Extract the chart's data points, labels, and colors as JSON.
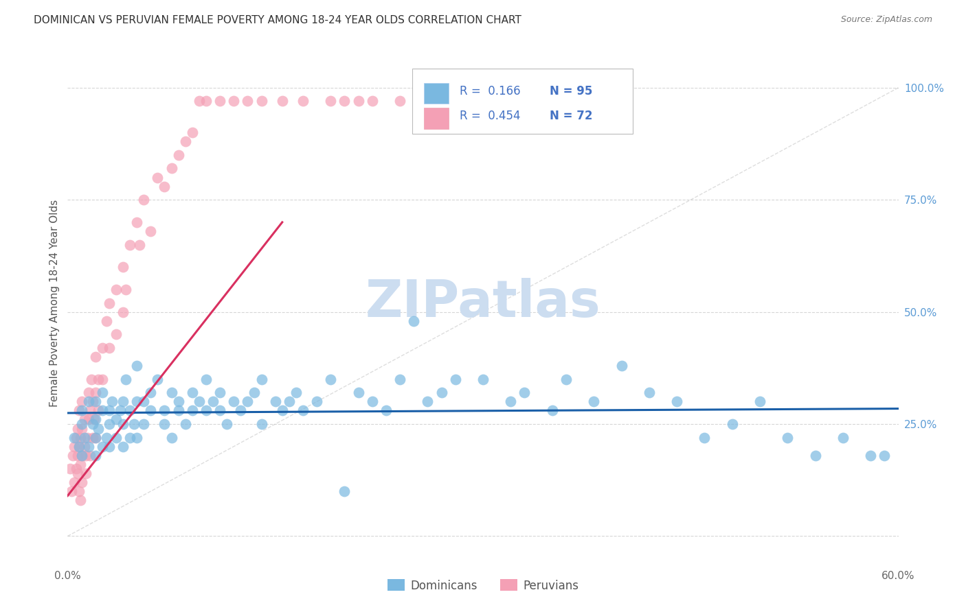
{
  "title": "DOMINICAN VS PERUVIAN FEMALE POVERTY AMONG 18-24 YEAR OLDS CORRELATION CHART",
  "source": "Source: ZipAtlas.com",
  "ylabel": "Female Poverty Among 18-24 Year Olds",
  "xlim": [
    0.0,
    0.6
  ],
  "ylim": [
    -0.06,
    1.1
  ],
  "blue_color": "#7ab8e0",
  "pink_color": "#f4a0b5",
  "blue_line_color": "#1a5fa8",
  "pink_line_color": "#d93060",
  "ref_line_color": "#c8c8c8",
  "watermark": "ZIPatlas",
  "watermark_color": "#ccddf0",
  "background_color": "#ffffff",
  "grid_color": "#cccccc",
  "title_color": "#333333",
  "right_tick_color": "#5b9bd5",
  "legend_text_color": "#4472c4",
  "dominicans_x": [
    0.005,
    0.008,
    0.01,
    0.01,
    0.01,
    0.012,
    0.015,
    0.015,
    0.018,
    0.02,
    0.02,
    0.02,
    0.02,
    0.022,
    0.025,
    0.025,
    0.025,
    0.028,
    0.03,
    0.03,
    0.03,
    0.032,
    0.035,
    0.035,
    0.038,
    0.04,
    0.04,
    0.04,
    0.042,
    0.045,
    0.045,
    0.048,
    0.05,
    0.05,
    0.05,
    0.055,
    0.055,
    0.06,
    0.06,
    0.065,
    0.07,
    0.07,
    0.075,
    0.075,
    0.08,
    0.08,
    0.085,
    0.09,
    0.09,
    0.095,
    0.1,
    0.1,
    0.105,
    0.11,
    0.11,
    0.115,
    0.12,
    0.125,
    0.13,
    0.135,
    0.14,
    0.14,
    0.15,
    0.155,
    0.16,
    0.165,
    0.17,
    0.18,
    0.19,
    0.2,
    0.21,
    0.22,
    0.23,
    0.24,
    0.25,
    0.26,
    0.27,
    0.28,
    0.3,
    0.32,
    0.33,
    0.35,
    0.36,
    0.38,
    0.4,
    0.42,
    0.44,
    0.46,
    0.48,
    0.5,
    0.52,
    0.54,
    0.56,
    0.58,
    0.59
  ],
  "dominicans_y": [
    0.22,
    0.2,
    0.18,
    0.25,
    0.28,
    0.22,
    0.2,
    0.3,
    0.25,
    0.22,
    0.26,
    0.18,
    0.3,
    0.24,
    0.2,
    0.28,
    0.32,
    0.22,
    0.25,
    0.2,
    0.28,
    0.3,
    0.22,
    0.26,
    0.28,
    0.25,
    0.3,
    0.2,
    0.35,
    0.22,
    0.28,
    0.25,
    0.3,
    0.22,
    0.38,
    0.25,
    0.3,
    0.28,
    0.32,
    0.35,
    0.25,
    0.28,
    0.32,
    0.22,
    0.28,
    0.3,
    0.25,
    0.28,
    0.32,
    0.3,
    0.28,
    0.35,
    0.3,
    0.28,
    0.32,
    0.25,
    0.3,
    0.28,
    0.3,
    0.32,
    0.25,
    0.35,
    0.3,
    0.28,
    0.3,
    0.32,
    0.28,
    0.3,
    0.35,
    0.1,
    0.32,
    0.3,
    0.28,
    0.35,
    0.48,
    0.3,
    0.32,
    0.35,
    0.35,
    0.3,
    0.32,
    0.28,
    0.35,
    0.3,
    0.38,
    0.32,
    0.3,
    0.22,
    0.25,
    0.3,
    0.22,
    0.18,
    0.22,
    0.18,
    0.18
  ],
  "peruvians_x": [
    0.002,
    0.003,
    0.004,
    0.005,
    0.005,
    0.006,
    0.006,
    0.007,
    0.007,
    0.007,
    0.008,
    0.008,
    0.008,
    0.009,
    0.009,
    0.009,
    0.01,
    0.01,
    0.01,
    0.01,
    0.012,
    0.012,
    0.013,
    0.013,
    0.014,
    0.015,
    0.015,
    0.016,
    0.016,
    0.017,
    0.018,
    0.018,
    0.019,
    0.02,
    0.02,
    0.02,
    0.022,
    0.022,
    0.025,
    0.025,
    0.028,
    0.03,
    0.03,
    0.035,
    0.035,
    0.04,
    0.04,
    0.042,
    0.045,
    0.05,
    0.052,
    0.055,
    0.06,
    0.065,
    0.07,
    0.075,
    0.08,
    0.085,
    0.09,
    0.095,
    0.1,
    0.11,
    0.12,
    0.13,
    0.14,
    0.155,
    0.17,
    0.19,
    0.2,
    0.21,
    0.22,
    0.24
  ],
  "peruvians_y": [
    0.15,
    0.1,
    0.18,
    0.12,
    0.2,
    0.15,
    0.22,
    0.18,
    0.14,
    0.24,
    0.1,
    0.2,
    0.28,
    0.16,
    0.22,
    0.08,
    0.18,
    0.24,
    0.12,
    0.3,
    0.2,
    0.26,
    0.18,
    0.14,
    0.22,
    0.26,
    0.32,
    0.18,
    0.28,
    0.35,
    0.22,
    0.3,
    0.26,
    0.32,
    0.22,
    0.4,
    0.35,
    0.28,
    0.42,
    0.35,
    0.48,
    0.52,
    0.42,
    0.55,
    0.45,
    0.6,
    0.5,
    0.55,
    0.65,
    0.7,
    0.65,
    0.75,
    0.68,
    0.8,
    0.78,
    0.82,
    0.85,
    0.88,
    0.9,
    0.97,
    0.97,
    0.97,
    0.97,
    0.97,
    0.97,
    0.97,
    0.97,
    0.97,
    0.97,
    0.97,
    0.97,
    0.97
  ],
  "pink_line_x": [
    0.0,
    0.155
  ],
  "pink_line_y": [
    0.09,
    0.7
  ]
}
